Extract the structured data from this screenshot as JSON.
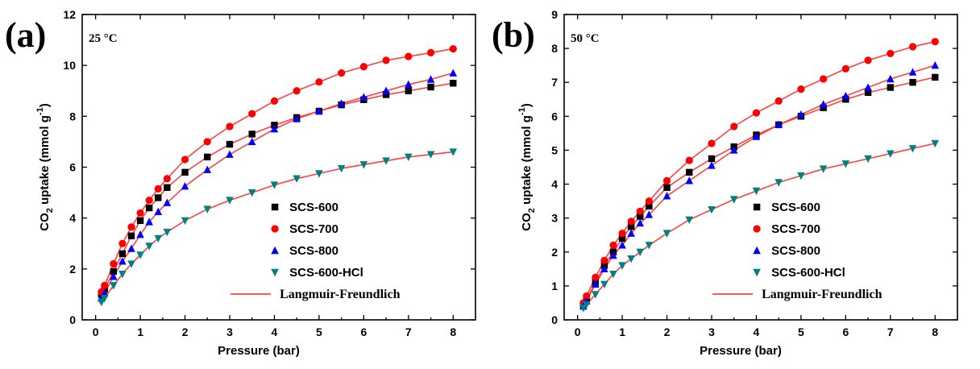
{
  "colors": {
    "SCS-600": "#000000",
    "SCS-700": "#ff0000",
    "SCS-800": "#0000ff",
    "SCS-600-HCl": "#008080",
    "Langmuir-Freundlich": "#ff4040"
  },
  "chart_data": [
    {
      "type": "scatter",
      "panel": "(a)",
      "annotation": "25 °C",
      "xlabel": "Pressure (bar)",
      "ylabel": "CO2 uptake (mmol g-1)",
      "ylabel_parts": {
        "pre": "CO",
        "sub": "2",
        "mid": " uptake (mmol g",
        "sup": "-1",
        "post": ")"
      },
      "xlim": [
        -0.3,
        8.5
      ],
      "ylim": [
        0,
        12
      ],
      "xticks": [
        0,
        1,
        2,
        3,
        4,
        5,
        6,
        7,
        8
      ],
      "yticks": [
        0,
        2,
        4,
        6,
        8,
        10,
        12
      ],
      "grid": false,
      "legend": {
        "placement": "bottom-right",
        "fit_label": "Langmuir-Freundlich"
      },
      "x": [
        0.13,
        0.2,
        0.4,
        0.6,
        0.8,
        1.0,
        1.2,
        1.4,
        1.6,
        2.0,
        2.5,
        3.0,
        3.5,
        4.0,
        4.5,
        5.0,
        5.5,
        6.0,
        6.5,
        7.0,
        7.5,
        8.0
      ],
      "series": [
        {
          "name": "SCS-600",
          "marker": "square",
          "values": [
            1.0,
            1.2,
            1.9,
            2.6,
            3.3,
            3.9,
            4.4,
            4.8,
            5.2,
            5.8,
            6.4,
            6.9,
            7.3,
            7.65,
            7.95,
            8.2,
            8.45,
            8.65,
            8.85,
            9.0,
            9.15,
            9.3
          ]
        },
        {
          "name": "SCS-700",
          "marker": "circle",
          "values": [
            1.1,
            1.35,
            2.2,
            3.0,
            3.65,
            4.2,
            4.7,
            5.15,
            5.55,
            6.3,
            7.0,
            7.6,
            8.1,
            8.6,
            9.0,
            9.35,
            9.7,
            9.95,
            10.2,
            10.35,
            10.5,
            10.65
          ]
        },
        {
          "name": "SCS-800",
          "marker": "triangle-up",
          "values": [
            0.85,
            1.05,
            1.7,
            2.3,
            2.8,
            3.35,
            3.85,
            4.25,
            4.6,
            5.25,
            5.9,
            6.5,
            7.0,
            7.5,
            7.9,
            8.2,
            8.5,
            8.75,
            9.0,
            9.25,
            9.45,
            9.7
          ]
        },
        {
          "name": "SCS-600-HCl",
          "marker": "triangle-down",
          "values": [
            0.7,
            0.85,
            1.35,
            1.8,
            2.2,
            2.55,
            2.9,
            3.2,
            3.45,
            3.9,
            4.35,
            4.7,
            5.0,
            5.3,
            5.55,
            5.75,
            5.95,
            6.1,
            6.25,
            6.4,
            6.5,
            6.6
          ]
        }
      ]
    },
    {
      "type": "scatter",
      "panel": "(b)",
      "annotation": "50 °C",
      "xlabel": "Pressure (bar)",
      "ylabel": "CO2 uptake (mmol g-1)",
      "ylabel_parts": {
        "pre": "CO",
        "sub": "2",
        "mid": " uptake (mmol g",
        "sup": "-1",
        "post": ")"
      },
      "xlim": [
        -0.3,
        8.5
      ],
      "ylim": [
        0,
        9
      ],
      "xticks": [
        0,
        1,
        2,
        3,
        4,
        5,
        6,
        7,
        8
      ],
      "yticks": [
        0,
        1,
        2,
        3,
        4,
        5,
        6,
        7,
        8,
        9
      ],
      "grid": false,
      "legend": {
        "placement": "bottom-right",
        "fit_label": "Langmuir-Freundlich"
      },
      "x": [
        0.13,
        0.2,
        0.4,
        0.6,
        0.8,
        1.0,
        1.2,
        1.4,
        1.6,
        2.0,
        2.5,
        3.0,
        3.5,
        4.0,
        4.5,
        5.0,
        5.5,
        6.0,
        6.5,
        7.0,
        7.5,
        8.0
      ],
      "series": [
        {
          "name": "SCS-600",
          "marker": "square",
          "values": [
            0.45,
            0.6,
            1.1,
            1.6,
            2.0,
            2.4,
            2.75,
            3.05,
            3.35,
            3.9,
            4.35,
            4.75,
            5.1,
            5.45,
            5.75,
            6.0,
            6.25,
            6.5,
            6.7,
            6.85,
            7.0,
            7.15
          ]
        },
        {
          "name": "SCS-700",
          "marker": "circle",
          "values": [
            0.5,
            0.7,
            1.25,
            1.75,
            2.2,
            2.55,
            2.9,
            3.2,
            3.5,
            4.1,
            4.7,
            5.2,
            5.7,
            6.1,
            6.45,
            6.8,
            7.1,
            7.4,
            7.65,
            7.85,
            8.05,
            8.2
          ]
        },
        {
          "name": "SCS-800",
          "marker": "triangle-up",
          "values": [
            0.4,
            0.55,
            1.05,
            1.5,
            1.9,
            2.2,
            2.55,
            2.85,
            3.1,
            3.65,
            4.1,
            4.55,
            5.0,
            5.4,
            5.75,
            6.05,
            6.35,
            6.6,
            6.85,
            7.1,
            7.3,
            7.5
          ]
        },
        {
          "name": "SCS-600-HCl",
          "marker": "triangle-down",
          "values": [
            0.35,
            0.45,
            0.75,
            1.05,
            1.35,
            1.6,
            1.8,
            2.0,
            2.2,
            2.55,
            2.95,
            3.25,
            3.55,
            3.8,
            4.05,
            4.25,
            4.45,
            4.6,
            4.75,
            4.9,
            5.05,
            5.2
          ]
        }
      ]
    }
  ]
}
